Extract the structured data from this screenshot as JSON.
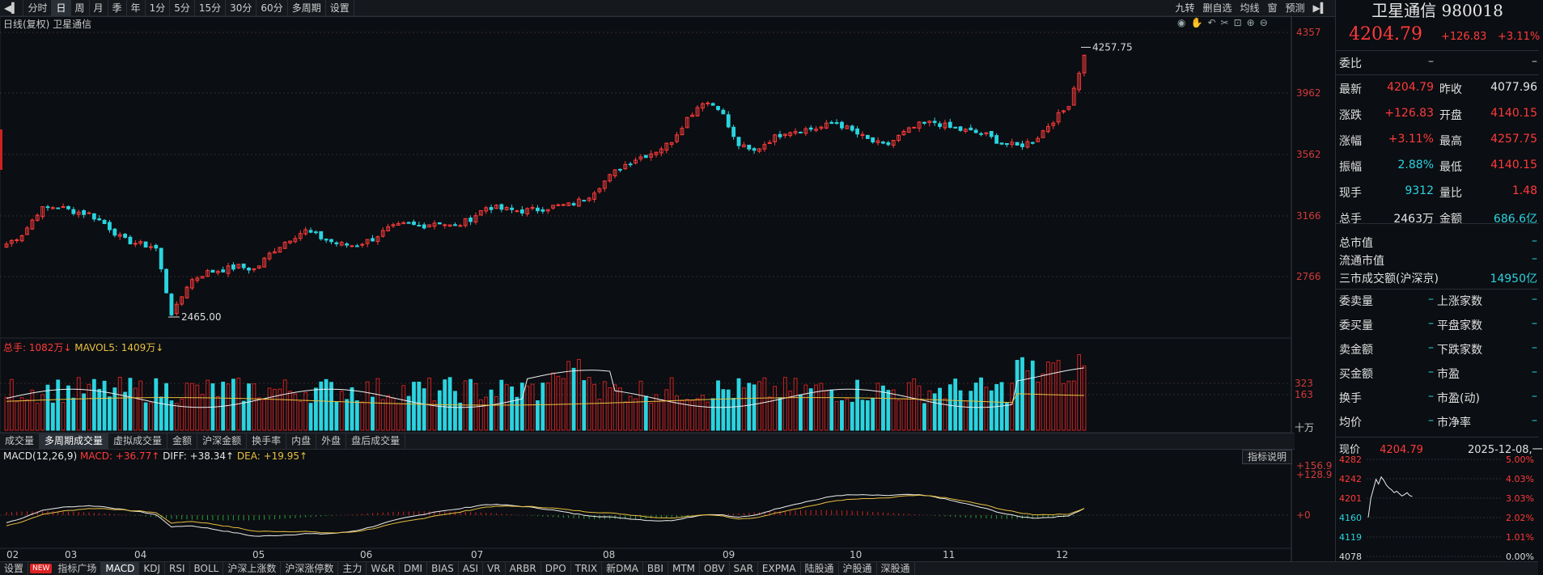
{
  "toolbar": {
    "items": [
      "分时",
      "日",
      "周",
      "月",
      "季",
      "年",
      "1分",
      "5分",
      "15分",
      "30分",
      "60分",
      "多周期",
      "设置"
    ],
    "active_index": 1,
    "right_items": [
      "九转",
      "删自选",
      "均线",
      "窗",
      "预测"
    ]
  },
  "chart": {
    "title": "日线(复权)  卫星通信",
    "price_axis": [
      "4357",
      "3962",
      "3562",
      "3166",
      "2766"
    ],
    "high_label": "4257.75",
    "low_label": "2465.00",
    "volume_axis": [
      "323",
      "163",
      "十万"
    ],
    "volume_label_total": "总手: 1082万↓",
    "volume_label_ma": "MAVOL5: 1409万↓",
    "macd_axis": [
      "+156.9",
      "+128.9",
      "+0"
    ],
    "macd_label_name": "MACD(12,26,9)",
    "macd_label_macd": "MACD: +36.77↑",
    "macd_label_diff": "DIFF: +38.34↑",
    "macd_label_dea": "DEA: +19.95↑",
    "help_label": "指标说明",
    "x_labels": [
      "02",
      "03",
      "04",
      "05",
      "06",
      "07",
      "08",
      "09",
      "10",
      "11",
      "12"
    ]
  },
  "chart_data": {
    "type": "candlestick",
    "title": "日线(复权) 卫星通信",
    "x_months": [
      "02",
      "03",
      "04",
      "05",
      "06",
      "07",
      "08",
      "09",
      "10",
      "11",
      "12"
    ],
    "ylim": [
      2465,
      4357
    ],
    "close_series_approx": [
      2950,
      3020,
      3180,
      3200,
      3170,
      3150,
      3080,
      2980,
      2950,
      2930,
      2470,
      2700,
      2760,
      2780,
      2800,
      2780,
      2900,
      2980,
      3040,
      2990,
      2950,
      2940,
      2980,
      3050,
      3080,
      3070,
      3100,
      3060,
      3120,
      3200,
      3180,
      3170,
      3180,
      3200,
      3210,
      3260,
      3360,
      3460,
      3520,
      3560,
      3620,
      3780,
      3900,
      3860,
      3620,
      3560,
      3640,
      3700,
      3710,
      3720,
      3760,
      3700,
      3640,
      3600,
      3680,
      3740,
      3760,
      3720,
      3700,
      3680,
      3620,
      3600,
      3640,
      3760,
      3860,
      4204.79
    ],
    "volume_axis_labels": [
      323,
      163
    ],
    "macd_axis_labels": [
      "+156.9",
      "+128.9",
      "+0"
    ]
  },
  "tabs": {
    "items": [
      "成交量",
      "多周期成交量",
      "虚拟成交量",
      "金额",
      "沪深金额",
      "换手率",
      "内盘",
      "外盘",
      "盘后成交量"
    ],
    "active_index": 1
  },
  "bottom": {
    "items": [
      "设置",
      "指标广场",
      "MACD",
      "KDJ",
      "RSI",
      "BOLL",
      "沪深上涨数",
      "沪深涨停数",
      "主力",
      "W&R",
      "DMI",
      "BIAS",
      "ASI",
      "VR",
      "ARBR",
      "DPO",
      "TRIX",
      "新DMA",
      "BBI",
      "MTM",
      "OBV",
      "SAR",
      "EXPMA",
      "陆股通",
      "沪股通",
      "深股通"
    ],
    "new_badge": "NEW",
    "active_index": 2
  },
  "panel": {
    "name": "卫星通信 980018",
    "price": "4204.79",
    "change": "+126.83",
    "pct": "+3.11%",
    "weibi_label": "委比",
    "weibi_v1": "–",
    "weibi_v2": "–",
    "rows": [
      {
        "l": "最新",
        "v": "4204.79",
        "vc": "red",
        "l2": "昨收",
        "v2": "4077.96",
        "v2c": "white"
      },
      {
        "l": "涨跌",
        "v": "+126.83",
        "vc": "red",
        "l2": "开盘",
        "v2": "4140.15",
        "v2c": "red"
      },
      {
        "l": "涨幅",
        "v": "+3.11%",
        "vc": "red",
        "l2": "最高",
        "v2": "4257.75",
        "v2c": "red"
      },
      {
        "l": "振幅",
        "v": "2.88%",
        "vc": "cyan",
        "l2": "最低",
        "v2": "4140.15",
        "v2c": "red"
      },
      {
        "l": "现手",
        "v": "9312",
        "vc": "cyan",
        "l2": "量比",
        "v2": "1.48",
        "v2c": "red"
      },
      {
        "l": "总手",
        "v": "2463万",
        "vc": "white",
        "l2": "金额",
        "v2": "686.6亿",
        "v2c": "cyan"
      }
    ],
    "market_rows": [
      {
        "l": "总市值",
        "v": "–"
      },
      {
        "l": "流通市值",
        "v": "–"
      },
      {
        "l": "三市成交额(沪深京)",
        "v": "14950亿"
      }
    ],
    "stat_rows": [
      {
        "l": "委卖量",
        "v": "–",
        "l2": "上涨家数",
        "v2": "–"
      },
      {
        "l": "委买量",
        "v": "–",
        "l2": "平盘家数",
        "v2": "–"
      },
      {
        "l": "卖金额",
        "v": "–",
        "l2": "下跌家数",
        "v2": "–"
      },
      {
        "l": "买金额",
        "v": "–",
        "l2": "市盈",
        "v2": "–"
      },
      {
        "l": "换手",
        "v": "–",
        "l2": "市盈(动)",
        "v2": "–"
      },
      {
        "l": "均价",
        "v": "–",
        "l2": "市净率",
        "v2": "–"
      }
    ],
    "mini": {
      "label": "现价",
      "price": "4204.79",
      "date": "2025-12-08,一",
      "left_axis": [
        "4282",
        "4242",
        "4201",
        "4160",
        "4119",
        "4078"
      ],
      "right_axis": [
        "5.00%",
        "4.03%",
        "3.03%",
        "2.02%",
        "1.01%",
        "0.00%"
      ]
    }
  }
}
